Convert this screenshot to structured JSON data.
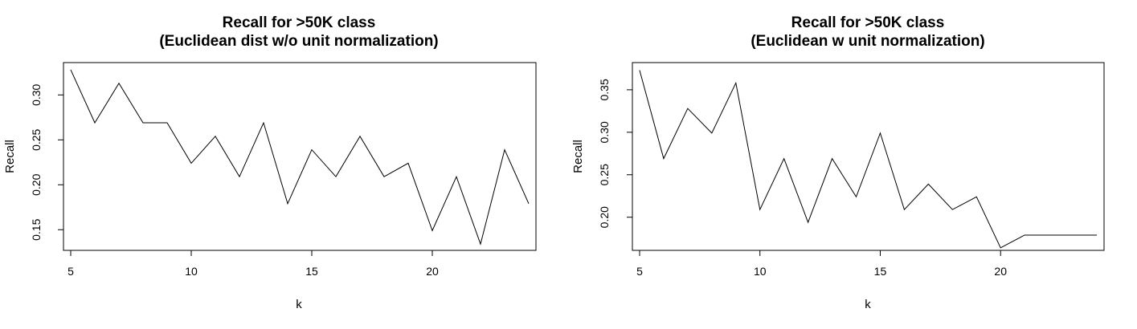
{
  "chart_data": [
    {
      "type": "line",
      "title": "Recall for >50K class",
      "subtitle": "(Euclidean dist w/o unit normalization)",
      "xlabel": "k",
      "ylabel": "Recall",
      "xlim": [
        4.7,
        24.3
      ],
      "ylim": [
        0.127,
        0.336
      ],
      "x_ticks": [
        5,
        10,
        15,
        20
      ],
      "y_ticks": [
        0.15,
        0.2,
        0.25,
        0.3
      ],
      "y_tick_labels": [
        "0.15",
        "0.20",
        "0.25",
        "0.30"
      ],
      "grid": false,
      "series": [
        {
          "x": [
            5,
            6,
            7,
            8,
            9,
            10,
            11,
            12,
            13,
            14,
            15,
            16,
            17,
            18,
            19,
            20,
            21,
            22,
            23,
            24
          ],
          "values": [
            0.328,
            0.269,
            0.313,
            0.269,
            0.269,
            0.224,
            0.254,
            0.209,
            0.269,
            0.179,
            0.239,
            0.209,
            0.254,
            0.209,
            0.224,
            0.149,
            0.209,
            0.134,
            0.239,
            0.179
          ]
        }
      ]
    },
    {
      "type": "line",
      "title": "Recall for >50K class",
      "subtitle": "(Euclidean w unit normalization)",
      "xlabel": "k",
      "ylabel": "Recall",
      "xlim": [
        4.7,
        24.3
      ],
      "ylim": [
        0.161,
        0.382
      ],
      "x_ticks": [
        5,
        10,
        15,
        20
      ],
      "y_ticks": [
        0.2,
        0.25,
        0.3,
        0.35
      ],
      "y_tick_labels": [
        "0.20",
        "0.25",
        "0.30",
        "0.35"
      ],
      "grid": false,
      "series": [
        {
          "x": [
            5,
            6,
            7,
            8,
            9,
            10,
            11,
            12,
            13,
            14,
            15,
            16,
            17,
            18,
            19,
            20,
            21,
            22,
            23,
            24
          ],
          "values": [
            0.373,
            0.269,
            0.328,
            0.299,
            0.358,
            0.209,
            0.269,
            0.194,
            0.269,
            0.224,
            0.299,
            0.209,
            0.239,
            0.209,
            0.224,
            0.164,
            0.179,
            0.179,
            0.179,
            0.179
          ]
        }
      ]
    }
  ]
}
